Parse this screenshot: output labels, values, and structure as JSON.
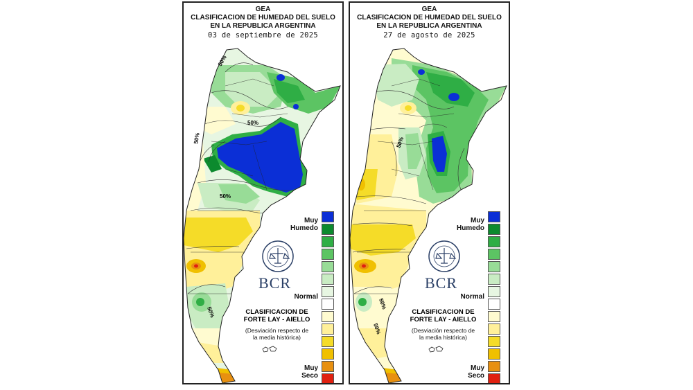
{
  "panels": [
    {
      "header_line1": "GEA",
      "header_line2": "CLASIFICACION DE HUMEDAD DEL SUELO",
      "header_line3": "EN LA REPUBLICA ARGENTINA",
      "date": "03 de septiembre de 2025",
      "contour_labels": [
        "50%",
        "50%",
        "50%",
        "50%",
        "50%"
      ]
    },
    {
      "header_line1": "GEA",
      "header_line2": "CLASIFICACION DE HUMEDAD DEL SUELO",
      "header_line3": "EN LA REPUBLICA ARGENTINA",
      "date": "27 de agosto de 2025",
      "contour_labels": [
        "50%",
        "50%",
        "50%"
      ]
    }
  ],
  "legend": {
    "top_label_line1": "Muy",
    "top_label_line2": "Humedo",
    "middle_label": "Normal",
    "bottom_label_line1": "Muy",
    "bottom_label_line2": "Seco",
    "classification_line1": "CLASIFICACION DE",
    "classification_line2": "FORTE LAY - AIELLO",
    "note_line1": "(Desviación respecto de",
    "note_line2": "la media histórica)",
    "colors": [
      "#0b2fd6",
      "#0c8a2e",
      "#2fae45",
      "#5cc463",
      "#98dc97",
      "#c9ecc3",
      "#e7f6e2",
      "#ffffff",
      "#fffbd0",
      "#fff09a",
      "#f5dc28",
      "#f0c000",
      "#e89010",
      "#e02010"
    ]
  },
  "logo": {
    "text": "BCR"
  }
}
